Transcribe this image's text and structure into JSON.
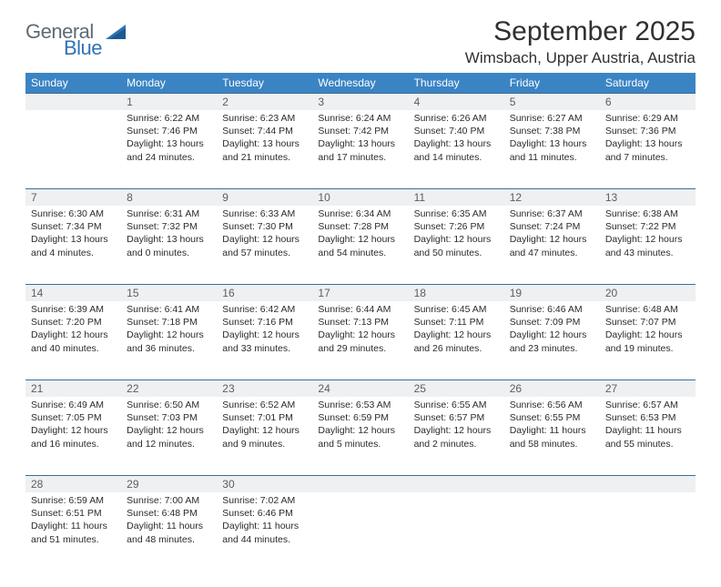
{
  "brand": {
    "part1": "General",
    "part2": "Blue",
    "color1": "#5f6b74",
    "color2": "#2f72b6"
  },
  "title": "September 2025",
  "location": "Wimsbach, Upper Austria, Austria",
  "header_bg": "#3b84c4",
  "divider_color": "#3b6d94",
  "daynum_bg": "#eef0f1",
  "dayNames": [
    "Sunday",
    "Monday",
    "Tuesday",
    "Wednesday",
    "Thursday",
    "Friday",
    "Saturday"
  ],
  "weeks": [
    [
      {
        "n": "",
        "sunrise": "",
        "sunset": "",
        "daylight": ""
      },
      {
        "n": "1",
        "sunrise": "Sunrise: 6:22 AM",
        "sunset": "Sunset: 7:46 PM",
        "daylight": "Daylight: 13 hours and 24 minutes."
      },
      {
        "n": "2",
        "sunrise": "Sunrise: 6:23 AM",
        "sunset": "Sunset: 7:44 PM",
        "daylight": "Daylight: 13 hours and 21 minutes."
      },
      {
        "n": "3",
        "sunrise": "Sunrise: 6:24 AM",
        "sunset": "Sunset: 7:42 PM",
        "daylight": "Daylight: 13 hours and 17 minutes."
      },
      {
        "n": "4",
        "sunrise": "Sunrise: 6:26 AM",
        "sunset": "Sunset: 7:40 PM",
        "daylight": "Daylight: 13 hours and 14 minutes."
      },
      {
        "n": "5",
        "sunrise": "Sunrise: 6:27 AM",
        "sunset": "Sunset: 7:38 PM",
        "daylight": "Daylight: 13 hours and 11 minutes."
      },
      {
        "n": "6",
        "sunrise": "Sunrise: 6:29 AM",
        "sunset": "Sunset: 7:36 PM",
        "daylight": "Daylight: 13 hours and 7 minutes."
      }
    ],
    [
      {
        "n": "7",
        "sunrise": "Sunrise: 6:30 AM",
        "sunset": "Sunset: 7:34 PM",
        "daylight": "Daylight: 13 hours and 4 minutes."
      },
      {
        "n": "8",
        "sunrise": "Sunrise: 6:31 AM",
        "sunset": "Sunset: 7:32 PM",
        "daylight": "Daylight: 13 hours and 0 minutes."
      },
      {
        "n": "9",
        "sunrise": "Sunrise: 6:33 AM",
        "sunset": "Sunset: 7:30 PM",
        "daylight": "Daylight: 12 hours and 57 minutes."
      },
      {
        "n": "10",
        "sunrise": "Sunrise: 6:34 AM",
        "sunset": "Sunset: 7:28 PM",
        "daylight": "Daylight: 12 hours and 54 minutes."
      },
      {
        "n": "11",
        "sunrise": "Sunrise: 6:35 AM",
        "sunset": "Sunset: 7:26 PM",
        "daylight": "Daylight: 12 hours and 50 minutes."
      },
      {
        "n": "12",
        "sunrise": "Sunrise: 6:37 AM",
        "sunset": "Sunset: 7:24 PM",
        "daylight": "Daylight: 12 hours and 47 minutes."
      },
      {
        "n": "13",
        "sunrise": "Sunrise: 6:38 AM",
        "sunset": "Sunset: 7:22 PM",
        "daylight": "Daylight: 12 hours and 43 minutes."
      }
    ],
    [
      {
        "n": "14",
        "sunrise": "Sunrise: 6:39 AM",
        "sunset": "Sunset: 7:20 PM",
        "daylight": "Daylight: 12 hours and 40 minutes."
      },
      {
        "n": "15",
        "sunrise": "Sunrise: 6:41 AM",
        "sunset": "Sunset: 7:18 PM",
        "daylight": "Daylight: 12 hours and 36 minutes."
      },
      {
        "n": "16",
        "sunrise": "Sunrise: 6:42 AM",
        "sunset": "Sunset: 7:16 PM",
        "daylight": "Daylight: 12 hours and 33 minutes."
      },
      {
        "n": "17",
        "sunrise": "Sunrise: 6:44 AM",
        "sunset": "Sunset: 7:13 PM",
        "daylight": "Daylight: 12 hours and 29 minutes."
      },
      {
        "n": "18",
        "sunrise": "Sunrise: 6:45 AM",
        "sunset": "Sunset: 7:11 PM",
        "daylight": "Daylight: 12 hours and 26 minutes."
      },
      {
        "n": "19",
        "sunrise": "Sunrise: 6:46 AM",
        "sunset": "Sunset: 7:09 PM",
        "daylight": "Daylight: 12 hours and 23 minutes."
      },
      {
        "n": "20",
        "sunrise": "Sunrise: 6:48 AM",
        "sunset": "Sunset: 7:07 PM",
        "daylight": "Daylight: 12 hours and 19 minutes."
      }
    ],
    [
      {
        "n": "21",
        "sunrise": "Sunrise: 6:49 AM",
        "sunset": "Sunset: 7:05 PM",
        "daylight": "Daylight: 12 hours and 16 minutes."
      },
      {
        "n": "22",
        "sunrise": "Sunrise: 6:50 AM",
        "sunset": "Sunset: 7:03 PM",
        "daylight": "Daylight: 12 hours and 12 minutes."
      },
      {
        "n": "23",
        "sunrise": "Sunrise: 6:52 AM",
        "sunset": "Sunset: 7:01 PM",
        "daylight": "Daylight: 12 hours and 9 minutes."
      },
      {
        "n": "24",
        "sunrise": "Sunrise: 6:53 AM",
        "sunset": "Sunset: 6:59 PM",
        "daylight": "Daylight: 12 hours and 5 minutes."
      },
      {
        "n": "25",
        "sunrise": "Sunrise: 6:55 AM",
        "sunset": "Sunset: 6:57 PM",
        "daylight": "Daylight: 12 hours and 2 minutes."
      },
      {
        "n": "26",
        "sunrise": "Sunrise: 6:56 AM",
        "sunset": "Sunset: 6:55 PM",
        "daylight": "Daylight: 11 hours and 58 minutes."
      },
      {
        "n": "27",
        "sunrise": "Sunrise: 6:57 AM",
        "sunset": "Sunset: 6:53 PM",
        "daylight": "Daylight: 11 hours and 55 minutes."
      }
    ],
    [
      {
        "n": "28",
        "sunrise": "Sunrise: 6:59 AM",
        "sunset": "Sunset: 6:51 PM",
        "daylight": "Daylight: 11 hours and 51 minutes."
      },
      {
        "n": "29",
        "sunrise": "Sunrise: 7:00 AM",
        "sunset": "Sunset: 6:48 PM",
        "daylight": "Daylight: 11 hours and 48 minutes."
      },
      {
        "n": "30",
        "sunrise": "Sunrise: 7:02 AM",
        "sunset": "Sunset: 6:46 PM",
        "daylight": "Daylight: 11 hours and 44 minutes."
      },
      {
        "n": "",
        "sunrise": "",
        "sunset": "",
        "daylight": ""
      },
      {
        "n": "",
        "sunrise": "",
        "sunset": "",
        "daylight": ""
      },
      {
        "n": "",
        "sunrise": "",
        "sunset": "",
        "daylight": ""
      },
      {
        "n": "",
        "sunrise": "",
        "sunset": "",
        "daylight": ""
      }
    ]
  ]
}
